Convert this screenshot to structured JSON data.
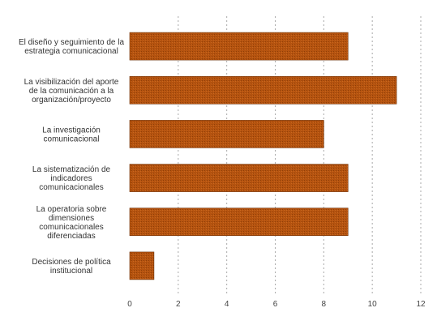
{
  "chart_data": {
    "type": "bar",
    "orientation": "horizontal",
    "categories": [
      [
        "El diseño y seguimiento de la",
        "estrategia comunicacional"
      ],
      [
        "La visibilización del aporte",
        "de la comunicación a la",
        "organización/proyecto"
      ],
      [
        "La investigación",
        "comunicacional"
      ],
      [
        "La sistematización de",
        "indicadores",
        "comunicacionales"
      ],
      [
        "La operatoria sobre",
        "dimensiones",
        "comunicacionales",
        "diferenciadas"
      ],
      [
        "Decisiones de política",
        "institucional"
      ]
    ],
    "values": [
      9,
      11,
      8,
      9,
      9,
      1
    ],
    "xlim": [
      0,
      12
    ],
    "xticks": [
      0,
      2,
      4,
      6,
      8,
      10,
      12
    ],
    "grid": true,
    "bar_color": "#b5530f",
    "bar_edge_color": "#6b2e05",
    "grid_color": "#aaaaaa",
    "title": "",
    "xlabel": "",
    "ylabel": ""
  }
}
